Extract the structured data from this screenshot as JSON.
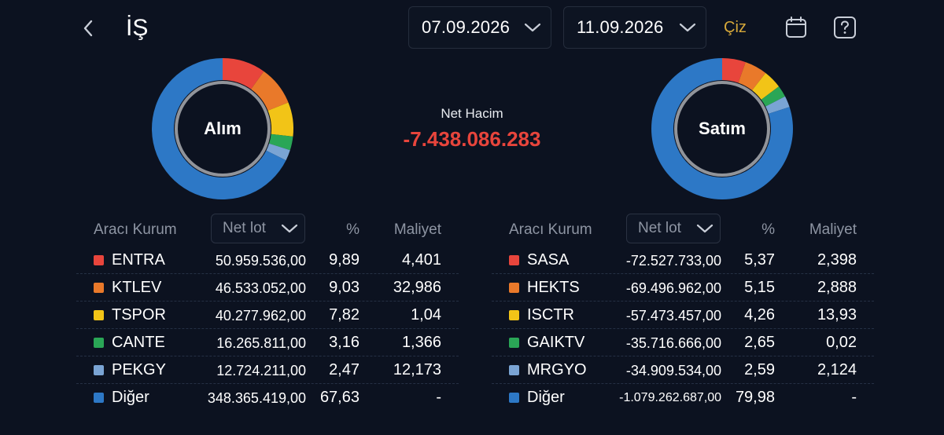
{
  "header": {
    "title": "İŞ",
    "start_date": "07.09.2026",
    "end_date": "11.09.2026",
    "draw_label": "Çiz",
    "icons": [
      "back-icon",
      "chevron-down-icon",
      "calendar-icon",
      "help-icon"
    ]
  },
  "summary": {
    "buy_label": "Alım",
    "sell_label": "Satım",
    "net_label": "Net Hacim",
    "net_value": "-7.438.086.283",
    "net_color": "#e8453c"
  },
  "colors": {
    "red": "#e8453c",
    "orange": "#e9792a",
    "yellow": "#f2c417",
    "green": "#2aa656",
    "lightblue": "#7aa4d4",
    "blue": "#2d78c6"
  },
  "buy_table": {
    "col_broker": "Aracı Kurum",
    "col_metric": "Net lot",
    "col_pct": "%",
    "col_cost": "Maliyet",
    "rows": [
      {
        "name": "ENTRA",
        "lot": "50.959.536,00",
        "pct": "9,89",
        "cost": "4,401",
        "color": "#e8453c"
      },
      {
        "name": "KTLEV",
        "lot": "46.533.052,00",
        "pct": "9,03",
        "cost": "32,986",
        "color": "#e9792a"
      },
      {
        "name": "TSPOR",
        "lot": "40.277.962,00",
        "pct": "7,82",
        "cost": "1,04",
        "color": "#f2c417"
      },
      {
        "name": "CANTE",
        "lot": "16.265.811,00",
        "pct": "3,16",
        "cost": "1,366",
        "color": "#2aa656"
      },
      {
        "name": "PEKGY",
        "lot": "12.724.211,00",
        "pct": "2,47",
        "cost": "12,173",
        "color": "#7aa4d4"
      },
      {
        "name": "Diğer",
        "lot": "348.365.419,00",
        "pct": "67,63",
        "cost": "-",
        "color": "#2d78c6"
      }
    ]
  },
  "sell_table": {
    "col_broker": "Aracı Kurum",
    "col_metric": "Net lot",
    "col_pct": "%",
    "col_cost": "Maliyet",
    "rows": [
      {
        "name": "SASA",
        "lot": "-72.527.733,00",
        "pct": "5,37",
        "cost": "2,398",
        "color": "#e8453c"
      },
      {
        "name": "HEKTS",
        "lot": "-69.496.962,00",
        "pct": "5,15",
        "cost": "2,888",
        "color": "#e9792a"
      },
      {
        "name": "ISCTR",
        "lot": "-57.473.457,00",
        "pct": "4,26",
        "cost": "13,93",
        "color": "#f2c417"
      },
      {
        "name": "GAIKTV",
        "lot": "-35.716.666,00",
        "pct": "2,65",
        "cost": "0,02",
        "color": "#2aa656"
      },
      {
        "name": "MRGYO",
        "lot": "-34.909.534,00",
        "pct": "2,59",
        "cost": "2,124",
        "color": "#7aa4d4"
      },
      {
        "name": "Diğer",
        "lot": "-1.079.262.687,00",
        "pct": "79,98",
        "cost": "-",
        "color": "#2d78c6"
      }
    ]
  }
}
